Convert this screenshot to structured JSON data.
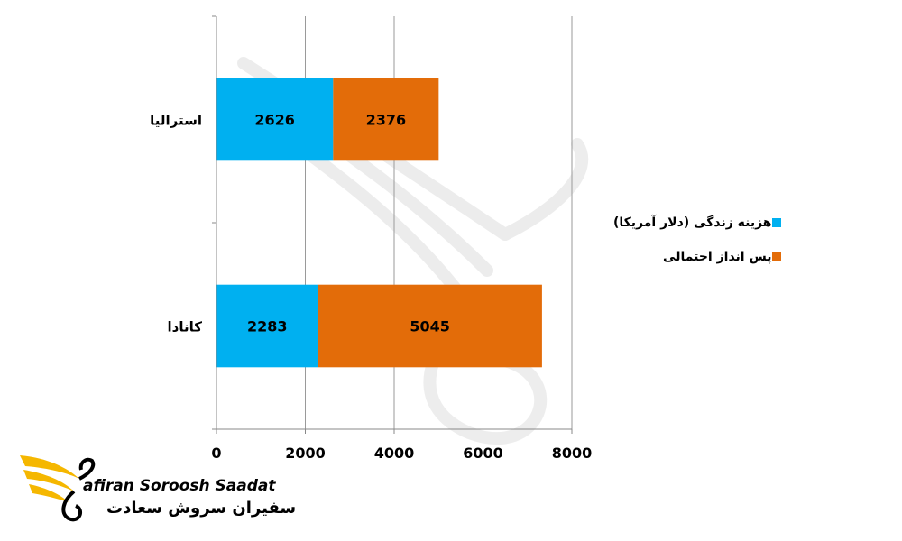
{
  "chart_data": {
    "type": "bar",
    "orientation": "horizontal",
    "stacked": true,
    "categories": [
      "استرالیا",
      "کانادا"
    ],
    "series": [
      {
        "name": "هزینه زندگی (دلار آمریکا)",
        "values": [
          2626,
          2283
        ],
        "color": "#00b0f0"
      },
      {
        "name": "پس انداز احتمالی",
        "values": [
          2376,
          5045
        ],
        "color": "#e36c09"
      }
    ],
    "xlim": [
      0,
      8000
    ],
    "xticks": [
      "0",
      "2000",
      "4000",
      "6000",
      "8000"
    ],
    "grid": "vertical",
    "legend": "right",
    "title": "",
    "xlabel": "",
    "ylabel": ""
  },
  "logo": {
    "brand_en": "afiran Soroosh Saadat",
    "brand_fa": "سفیران سروش سعادت",
    "color": "#f5b700",
    "icon": "swan-wing-logo-icon"
  },
  "watermark": {
    "icon": "swan-watermark-icon"
  }
}
